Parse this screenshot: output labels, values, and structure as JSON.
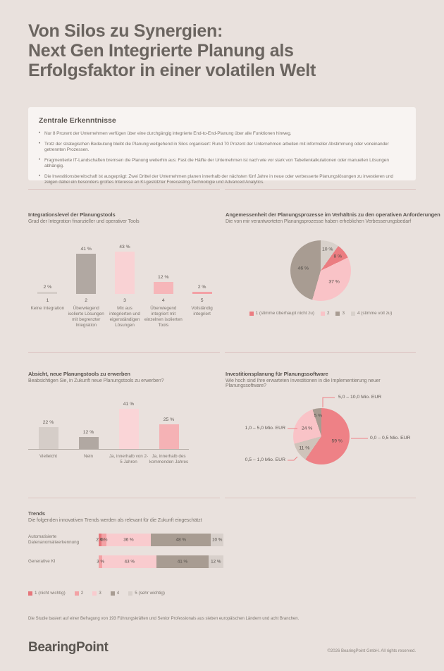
{
  "colors": {
    "background": "#e9e1dd",
    "panel": "#f8f4f2",
    "accent_salmon": "#ec8086",
    "divider_pink": "#dcc3c1",
    "text_dark": "#5f5954",
    "text_body": "#7d766f"
  },
  "header": {
    "title_lines": [
      "Von Silos zu Synergien:",
      "Next Gen Integrierte Planung als",
      "Erfolgsfaktor in einer volatilen Welt"
    ]
  },
  "key_findings": {
    "heading": "Zentrale Erkenntnisse",
    "bullets": [
      "Nur 8 Prozent der Unternehmen verfügen über eine durchgängig integrierte End-to-End-Planung über alle Funktionen hinweg.",
      "Trotz der strategischen Bedeutung bleibt die Planung weitgehend in Silos organisiert: Rund 70 Prozent der Unternehmen arbeiten mit informeller Abstimmung oder voneinander getrennten Prozessen.",
      "Fragmentierte IT-Landschaften bremsen die Planung weiterhin aus: Fast die Hälfte der Unternehmen ist nach wie vor stark von Tabellenkalkulationen oder manuellen Lösungen abhängig.",
      "Die Investitionsbereitschaft ist ausgeprägt: Zwei Drittel der Unternehmen planen innerhalb der nächsten fünf Jahre in neue oder verbesserte Planungslösungen zu investieren und zeigen dabei ein besonders großes Interesse an KI-gestützter Forecasting-Technologie und Advanced Analytics."
    ]
  },
  "chart_data": [
    {
      "type": "bar",
      "title": "Integrationslevel der Planungstools",
      "subtitle": "Grad der Integration finanzieller und operativer Tools",
      "unit": "%",
      "tick_labels": [
        "1",
        "2",
        "3",
        "4",
        "5"
      ],
      "categories": [
        "Keine Integration",
        "Überwiegend isolierte Lösungen mit begrenzter Integration",
        "Mix aus integrierten und eigenständigen Lösungen",
        "Überwiegend integriert mit einzelnen isolierten Tools",
        "Vollständig integriert"
      ],
      "values": [
        2,
        41,
        43,
        12,
        2
      ],
      "bar_colors": [
        "#d5cdc8",
        "#b1a8a2",
        "#f9d2d4",
        "#f6b6b9",
        "#f3a0a5"
      ],
      "ylim": [
        0,
        50
      ],
      "axis_line": false
    },
    {
      "type": "pie",
      "title": "Angemessenheit der Planungsprozesse im Verhältnis zu den operativen Anforderungen",
      "subtitle": "Die von mir verantworteten Planungsprozesse haben erheblichen Verbesserungsbedarf",
      "unit": "%",
      "slices": [
        {
          "label": "4 (stimme voll zu)",
          "value": 10,
          "color": "#d8d1cb"
        },
        {
          "label": "1 (stimme überhaupt nicht zu)",
          "value": 8,
          "color": "#eb7d81"
        },
        {
          "label": "2",
          "value": 37,
          "color": "#f9c3c7"
        },
        {
          "label": "3",
          "value": 46,
          "color": "#a89c92"
        }
      ],
      "legend": [
        {
          "label": "1 (stimme überhaupt nicht zu)",
          "color": "#eb7d81"
        },
        {
          "label": "2",
          "color": "#f9c3c7"
        },
        {
          "label": "3",
          "color": "#a89c92"
        },
        {
          "label": "4 (stimme voll zu)",
          "color": "#d8d1cb"
        }
      ],
      "legend_position": "bottom",
      "start_angle_deg": 0
    },
    {
      "type": "bar",
      "title": "Absicht, neue Planungstools zu erwerben",
      "subtitle": "Beabsichtigen Sie, in Zukunft neue Planungstools zu erwerben?",
      "unit": "%",
      "categories": [
        "Vielleicht",
        "Nein",
        "Ja, innerhalb von 2-5 Jahren",
        "Ja, innerhalb des kommenden Jahres"
      ],
      "values": [
        22,
        12,
        41,
        25
      ],
      "bar_colors": [
        "#d5cdc8",
        "#b1a8a2",
        "#fad5d7",
        "#f5b2b5"
      ],
      "ylim": [
        0,
        50
      ],
      "axis_line": true
    },
    {
      "type": "pie",
      "title": "Investitionsplanung für Planungssoftware",
      "subtitle": "Wie hoch sind Ihre erwarteten Investitionen in die Implementierung neuer Planungssoftware?",
      "unit": "%",
      "slices": [
        {
          "label": "0,0 – 0,5 Mio. EUR",
          "value": 59,
          "color": "#ee8186"
        },
        {
          "label": "0,5 – 1,0 Mio. EUR",
          "value": 11,
          "color": "#cfc3ba"
        },
        {
          "label": "1,0 – 5,0 Mio. EUR",
          "value": 24,
          "color": "#f9c3c7"
        },
        {
          "label": "5,0 – 10,0 Mio. EUR",
          "value": 5,
          "color": "#a89c92"
        }
      ],
      "labels_style": "callout",
      "start_angle_deg": 0
    },
    {
      "type": "stacked_bar",
      "title": "Trends",
      "subtitle": "Die folgenden innovativen Trends werden als relevant für die Zukunft eingeschätzt",
      "unit": "%",
      "categories": [
        "Automatisierte Datenanomalieerkennung",
        "Generative KI"
      ],
      "series_labels": [
        "1 (nicht wichtig)",
        "2",
        "3",
        "4",
        "5 (sehr wichtig)"
      ],
      "series_colors": [
        "#e6767b",
        "#f3a2a5",
        "#f9cbce",
        "#a89c92",
        "#d8d0cb"
      ],
      "rows": [
        [
          2,
          4,
          36,
          48,
          10
        ],
        [
          0,
          3,
          43,
          41,
          12
        ]
      ]
    }
  ],
  "footnote": "Die Studie basiert auf einer Befragung von 193 Führungskräften und Senior Professionals aus sieben europäischen Ländern und acht Branchen.",
  "footer": {
    "logo_text": "BearingPoint",
    "copyright": "©2026 BearingPoint GmbH. All rights reserved."
  }
}
